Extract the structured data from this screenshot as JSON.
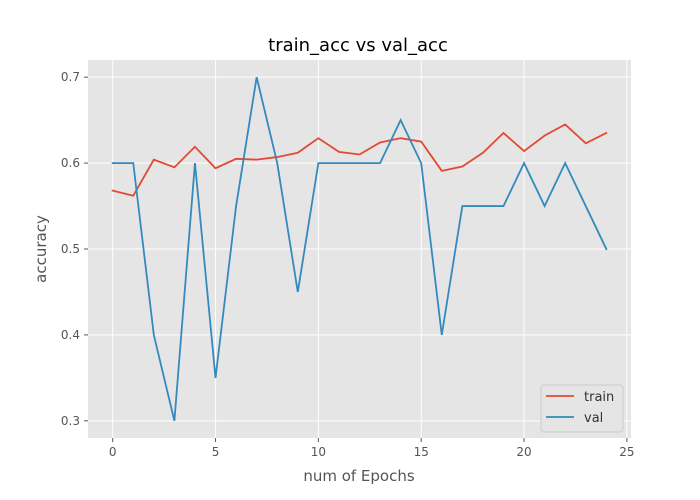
{
  "chart_data": {
    "type": "line",
    "title": "train_acc vs val_acc",
    "xlabel": "num of Epochs",
    "ylabel": "accuracy",
    "x": [
      0,
      1,
      2,
      3,
      4,
      5,
      6,
      7,
      8,
      9,
      10,
      11,
      12,
      13,
      14,
      15,
      16,
      17,
      18,
      19,
      20,
      21,
      22,
      23,
      24
    ],
    "xticks": [
      0,
      5,
      10,
      15,
      20,
      25
    ],
    "yticks": [
      0.3,
      0.4,
      0.5,
      0.6,
      0.7
    ],
    "xlim": [
      -1.2,
      25.2
    ],
    "ylim": [
      0.28,
      0.72
    ],
    "grid": true,
    "legend_position": "lower right",
    "series": [
      {
        "name": "train",
        "color": "#E24A33",
        "values": [
          0.568,
          0.562,
          0.604,
          0.595,
          0.619,
          0.594,
          0.605,
          0.604,
          0.607,
          0.612,
          0.629,
          0.613,
          0.61,
          0.624,
          0.629,
          0.625,
          0.591,
          0.596,
          0.612,
          0.635,
          0.614,
          0.632,
          0.645,
          0.623,
          0.635
        ]
      },
      {
        "name": "val",
        "color": "#348ABD",
        "values": [
          0.6,
          0.6,
          0.4,
          0.3,
          0.6,
          0.35,
          0.55,
          0.7,
          0.6,
          0.45,
          0.6,
          0.6,
          0.6,
          0.6,
          0.65,
          0.6,
          0.4,
          0.55,
          0.55,
          0.55,
          0.6,
          0.55,
          0.6,
          0.55,
          0.5
        ]
      }
    ]
  }
}
